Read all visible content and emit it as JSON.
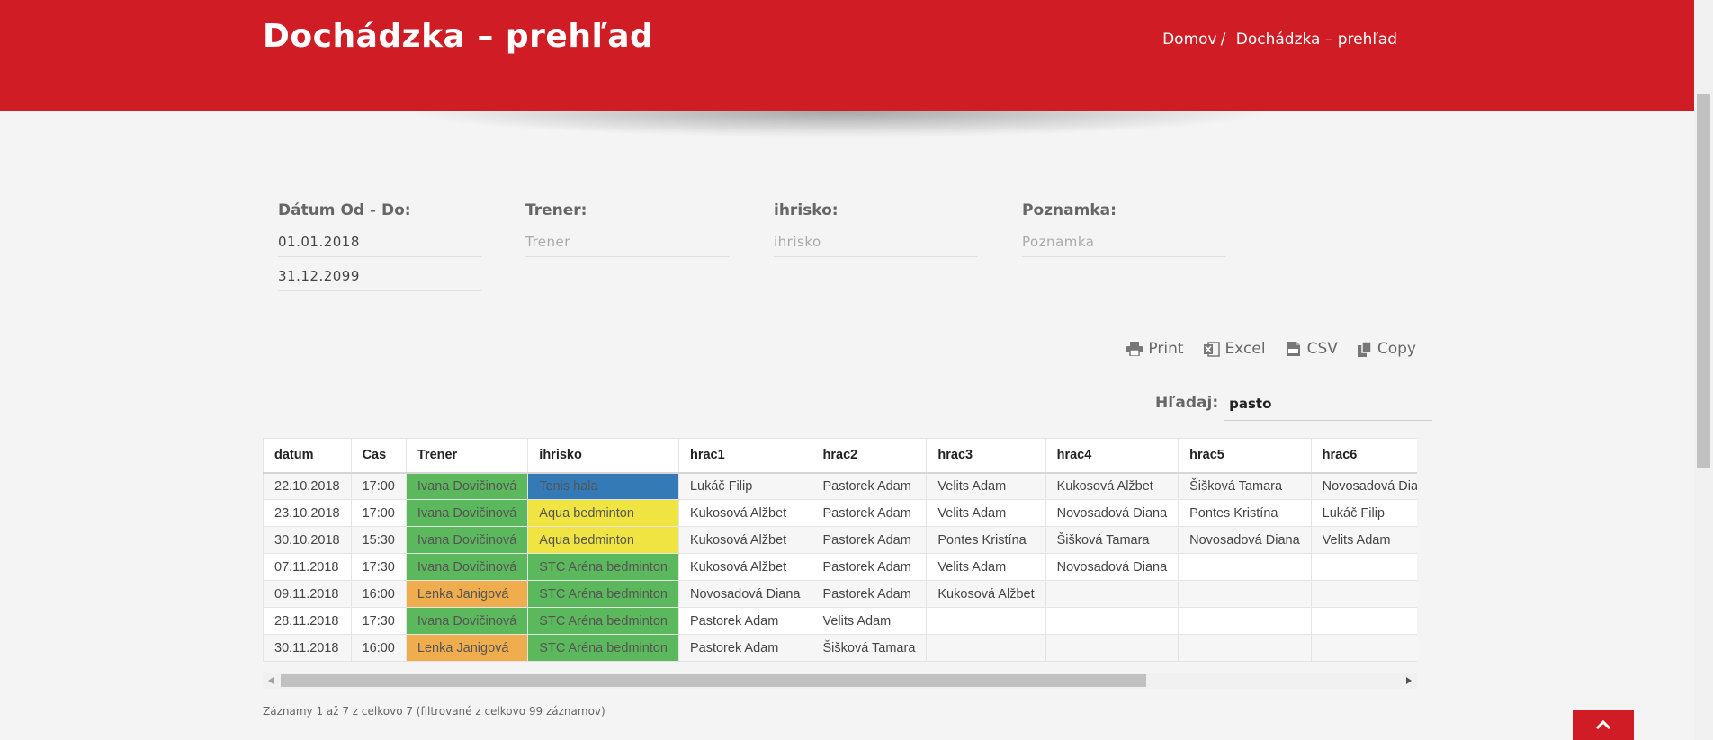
{
  "header": {
    "title": "Dochádzka – prehľad",
    "breadcrumb": {
      "home": "Domov",
      "separator": "/",
      "current": "Dochádzka – prehľad"
    },
    "color": "#cf1c25"
  },
  "filters": {
    "date": {
      "label": "Dátum Od - Do:",
      "from": "01.01.2018",
      "to": "31.12.2099"
    },
    "trainer": {
      "label": "Trener:",
      "placeholder": "Trener"
    },
    "court": {
      "label": "ihrisko:",
      "placeholder": "ihrisko"
    },
    "note": {
      "label": "Poznamka:",
      "placeholder": "Poznamka"
    }
  },
  "export_buttons": {
    "print": {
      "label": "Print",
      "icon": "print-icon"
    },
    "excel": {
      "label": "Excel",
      "icon": "excel-icon"
    },
    "csv": {
      "label": "CSV",
      "icon": "csv-icon"
    },
    "copy": {
      "label": "Copy",
      "icon": "copy-icon"
    }
  },
  "search": {
    "label": "Hľadaj:",
    "value": "pasto"
  },
  "table": {
    "columns": [
      "datum",
      "Cas",
      "Trener",
      "ihrisko",
      "hrac1",
      "hrac2",
      "hrac3",
      "hrac4",
      "hrac5",
      "hrac6"
    ],
    "rows": [
      {
        "datum": "22.10.2018",
        "cas": "17:00",
        "trener": "Ivana Dovičinová",
        "trener_color": "#5cb85c",
        "ihrisko": "Tenis hala",
        "ihrisko_color": "#337ab7",
        "players": [
          "Lukáč Filip",
          "Pastorek Adam",
          "Velits Adam",
          "Kukosová Alžbet",
          "Šišková Tamara",
          "Novosadová Diana"
        ]
      },
      {
        "datum": "23.10.2018",
        "cas": "17:00",
        "trener": "Ivana Dovičinová",
        "trener_color": "#5cb85c",
        "ihrisko": "Aqua bedminton",
        "ihrisko_color": "#f0e442",
        "players": [
          "Kukosová Alžbet",
          "Pastorek Adam",
          "Velits Adam",
          "Novosadová Diana",
          "Pontes Kristína",
          "Lukáč Filip"
        ]
      },
      {
        "datum": "30.10.2018",
        "cas": "15:30",
        "trener": "Ivana Dovičinová",
        "trener_color": "#5cb85c",
        "ihrisko": "Aqua bedminton",
        "ihrisko_color": "#f0e442",
        "players": [
          "Kukosová Alžbet",
          "Pastorek Adam",
          "Pontes Kristína",
          "Šišková Tamara",
          "Novosadová Diana",
          "Velits Adam"
        ]
      },
      {
        "datum": "07.11.2018",
        "cas": "17:30",
        "trener": "Ivana Dovičinová",
        "trener_color": "#5cb85c",
        "ihrisko": "STC Aréna bedminton",
        "ihrisko_color": "#5cb85c",
        "players": [
          "Kukosová Alžbet",
          "Pastorek Adam",
          "Velits Adam",
          "Novosadová Diana",
          "",
          ""
        ]
      },
      {
        "datum": "09.11.2018",
        "cas": "16:00",
        "trener": "Lenka Janigová",
        "trener_color": "#f0ad4e",
        "ihrisko": "STC Aréna bedminton",
        "ihrisko_color": "#5cb85c",
        "players": [
          "Novosadová Diana",
          "Pastorek Adam",
          "Kukosová Alžbet",
          "",
          "",
          ""
        ]
      },
      {
        "datum": "28.11.2018",
        "cas": "17:30",
        "trener": "Ivana Dovičinová",
        "trener_color": "#5cb85c",
        "ihrisko": "STC Aréna bedminton",
        "ihrisko_color": "#5cb85c",
        "players": [
          "Pastorek Adam",
          "Velits Adam",
          "",
          "",
          "",
          ""
        ]
      },
      {
        "datum": "30.11.2018",
        "cas": "16:00",
        "trener": "Lenka Janigová",
        "trener_color": "#f0ad4e",
        "ihrisko": "STC Aréna bedminton",
        "ihrisko_color": "#5cb85c",
        "players": [
          "Pastorek Adam",
          "Šišková Tamara",
          "",
          "",
          "",
          ""
        ]
      }
    ]
  },
  "footer": {
    "info": "Záznamy 1 až 7 z celkovo 7 (filtrované z celkovo 99 záznamov)"
  }
}
